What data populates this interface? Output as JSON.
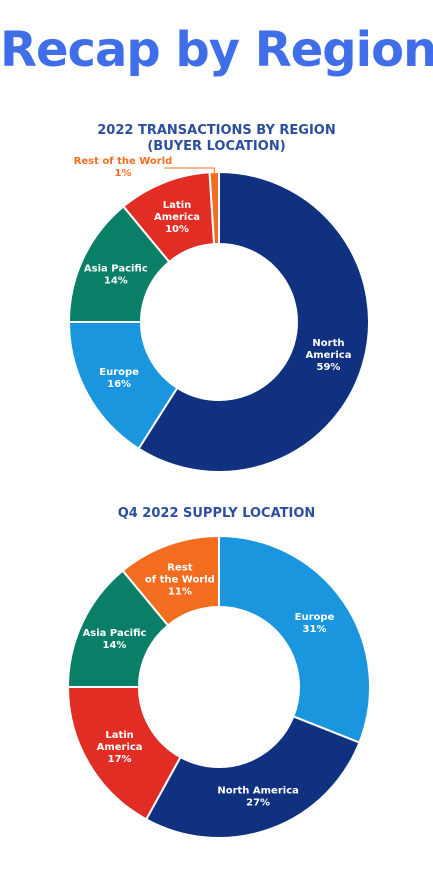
{
  "page": {
    "title": "Recap by Region"
  },
  "chart_data": [
    {
      "type": "pie",
      "title": "2022 TRANSACTIONS BY REGION\n(BUYER LOCATION)",
      "title_lines": [
        "2022 TRANSACTIONS BY REGION",
        "(BUYER LOCATION)"
      ],
      "donut": true,
      "categories": [
        "North America",
        "Europe",
        "Asia Pacific",
        "Latin America",
        "Rest of the World"
      ],
      "values": [
        59,
        16,
        14,
        10,
        1
      ],
      "value_labels": [
        "59%",
        "16%",
        "14%",
        "10%",
        "1%"
      ],
      "label_lines": [
        [
          "North",
          "America"
        ],
        [
          "Europe"
        ],
        [
          "Asia Pacific"
        ],
        [
          "Latin",
          "America"
        ],
        [
          "Rest of the World"
        ]
      ],
      "colors": [
        "#0f3180",
        "#1a96de",
        "#0a7f68",
        "#e12d23",
        "#f36d21"
      ],
      "external_labels": [
        "Rest of the World"
      ],
      "start": "12 o'clock, clockwise"
    },
    {
      "type": "pie",
      "title": "Q4 2022 SUPPLY LOCATION",
      "title_lines": [
        "Q4 2022 SUPPLY LOCATION"
      ],
      "donut": true,
      "categories": [
        "Europe",
        "North America",
        "Latin America",
        "Asia Pacific",
        "Rest of the World"
      ],
      "values": [
        31,
        27,
        17,
        14,
        11
      ],
      "value_labels": [
        "31%",
        "27%",
        "17%",
        "14%",
        "11%"
      ],
      "label_lines": [
        [
          "Europe"
        ],
        [
          "North America"
        ],
        [
          "Latin",
          "America"
        ],
        [
          "Asia Pacific"
        ],
        [
          "Rest",
          "of the World"
        ]
      ],
      "colors": [
        "#1a96de",
        "#0f3180",
        "#e12d23",
        "#0a7f68",
        "#f36d21"
      ],
      "external_labels": [],
      "start": "12 o'clock, clockwise"
    }
  ]
}
